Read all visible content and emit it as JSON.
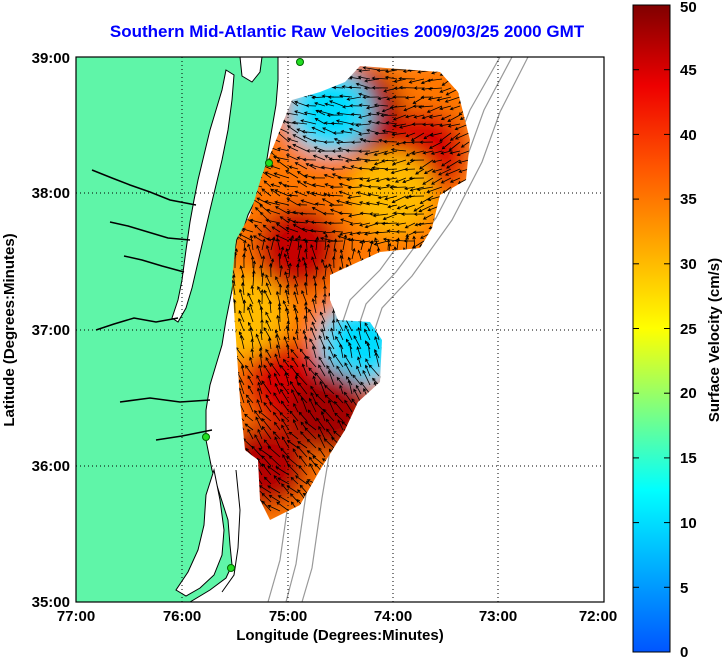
{
  "title": "Southern Mid-Atlantic Raw Velocities 2009/03/25 2000 GMT",
  "x_axis": {
    "label": "Longitude (Degrees:Minutes)",
    "ticks": [
      "77:00",
      "76:00",
      "75:00",
      "74:00",
      "73:00",
      "72:00"
    ]
  },
  "y_axis": {
    "label": "Latitude (Degrees:Minutes)",
    "ticks": [
      "39:00",
      "38:00",
      "37:00",
      "36:00",
      "35:00"
    ]
  },
  "colorbar": {
    "label": "Surface Velocity (cm/s)",
    "min": 0,
    "max": 50,
    "ticks": [
      "0",
      "5",
      "10",
      "15",
      "20",
      "25",
      "30",
      "35",
      "40",
      "45",
      "50"
    ],
    "colormap": "jet"
  },
  "map": {
    "lon_range": [
      -77,
      -72
    ],
    "lat_range": [
      35,
      39
    ],
    "land_color": "#5ff5a8",
    "water_color": "#ffffff",
    "grid": "dotted",
    "station_color": "#22dd22"
  },
  "chart_data": {
    "type": "heatmap",
    "title": "Southern Mid-Atlantic Raw Velocities 2009/03/25 2000 GMT",
    "xlabel": "Longitude (Degrees:Minutes)",
    "ylabel": "Latitude (Degrees:Minutes)",
    "zlabel": "Surface Velocity (cm/s)",
    "xlim": [
      -77,
      -72
    ],
    "ylim": [
      35,
      39
    ],
    "zlim": [
      0,
      50
    ],
    "regions": [
      {
        "lon": -74.3,
        "lat": 38.6,
        "speed": 48
      },
      {
        "lon": -74.6,
        "lat": 38.6,
        "speed": 10
      },
      {
        "lon": -73.7,
        "lat": 38.3,
        "speed": 45
      },
      {
        "lon": -74.0,
        "lat": 38.0,
        "speed": 30
      },
      {
        "lon": -74.9,
        "lat": 37.6,
        "speed": 46
      },
      {
        "lon": -75.4,
        "lat": 37.1,
        "speed": 30
      },
      {
        "lon": -74.3,
        "lat": 36.9,
        "speed": 10
      },
      {
        "lon": -75.0,
        "lat": 36.6,
        "speed": 45
      },
      {
        "lon": -74.6,
        "lat": 36.4,
        "speed": 48
      },
      {
        "lon": -75.2,
        "lat": 36.0,
        "speed": 47
      }
    ]
  }
}
